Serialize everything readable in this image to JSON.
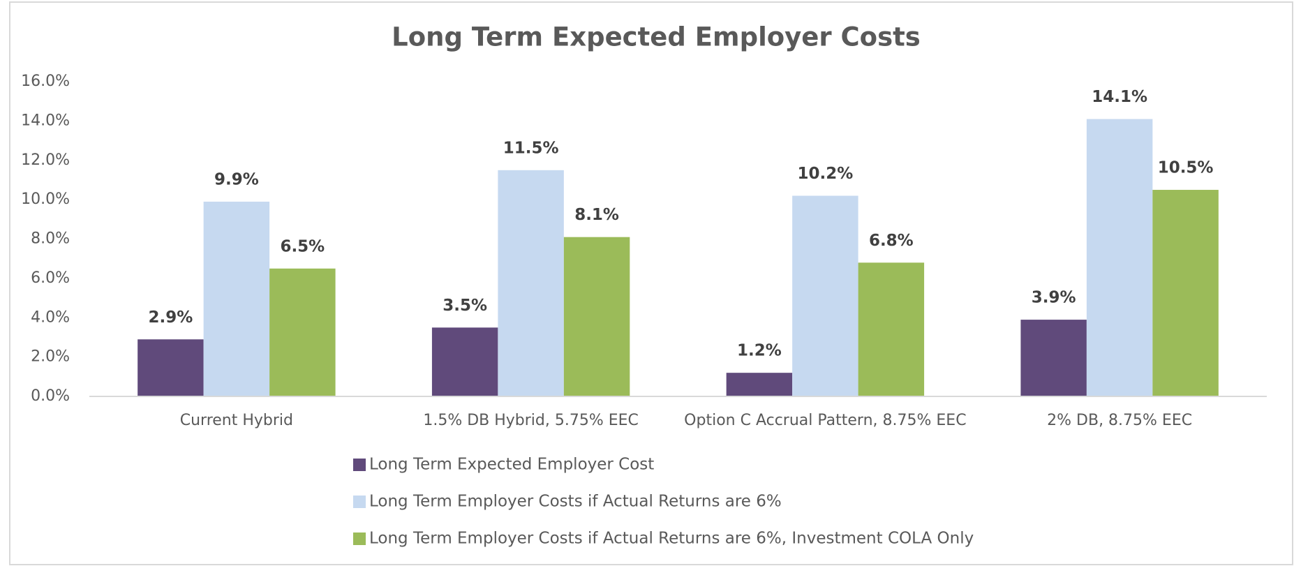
{
  "chart_data": {
    "type": "bar",
    "title": "Long Term Expected Employer Costs",
    "categories": [
      "Current Hybrid",
      "1.5% DB Hybrid, 5.75% EEC",
      "Option C Accrual Pattern, 8.75% EEC",
      "2% DB, 8.75% EEC"
    ],
    "series": [
      {
        "name": "Long Term Expected Employer Cost",
        "color": "#604a7b",
        "values": [
          2.9,
          3.5,
          1.2,
          3.9
        ],
        "value_labels": [
          "2.9%",
          "3.5%",
          "1.2%",
          "3.9%"
        ]
      },
      {
        "name": "Long Term Employer Costs if Actual Returns are 6%",
        "color": "#c6d9f0",
        "values": [
          9.9,
          11.5,
          10.2,
          14.1
        ],
        "value_labels": [
          "9.9%",
          "11.5%",
          "10.2%",
          "14.1%"
        ]
      },
      {
        "name": "Long Term Employer Costs if Actual Returns are 6%, Investment COLA Only",
        "color": "#9bbb59",
        "values": [
          6.5,
          8.1,
          6.8,
          10.5
        ],
        "value_labels": [
          "6.5%",
          "8.1%",
          "6.8%",
          "10.5%"
        ]
      }
    ],
    "ylim": [
      0,
      16
    ],
    "yticks": [
      {
        "value": 0,
        "label": "0.0%"
      },
      {
        "value": 2,
        "label": "2.0%"
      },
      {
        "value": 4,
        "label": "4.0%"
      },
      {
        "value": 6,
        "label": "6.0%"
      },
      {
        "value": 8,
        "label": "8.0%"
      },
      {
        "value": 10,
        "label": "10.0%"
      },
      {
        "value": 12,
        "label": "12.0%"
      },
      {
        "value": 14,
        "label": "14.0%"
      },
      {
        "value": 16,
        "label": "16.0%"
      }
    ],
    "grid": false,
    "legend": "bottom"
  }
}
